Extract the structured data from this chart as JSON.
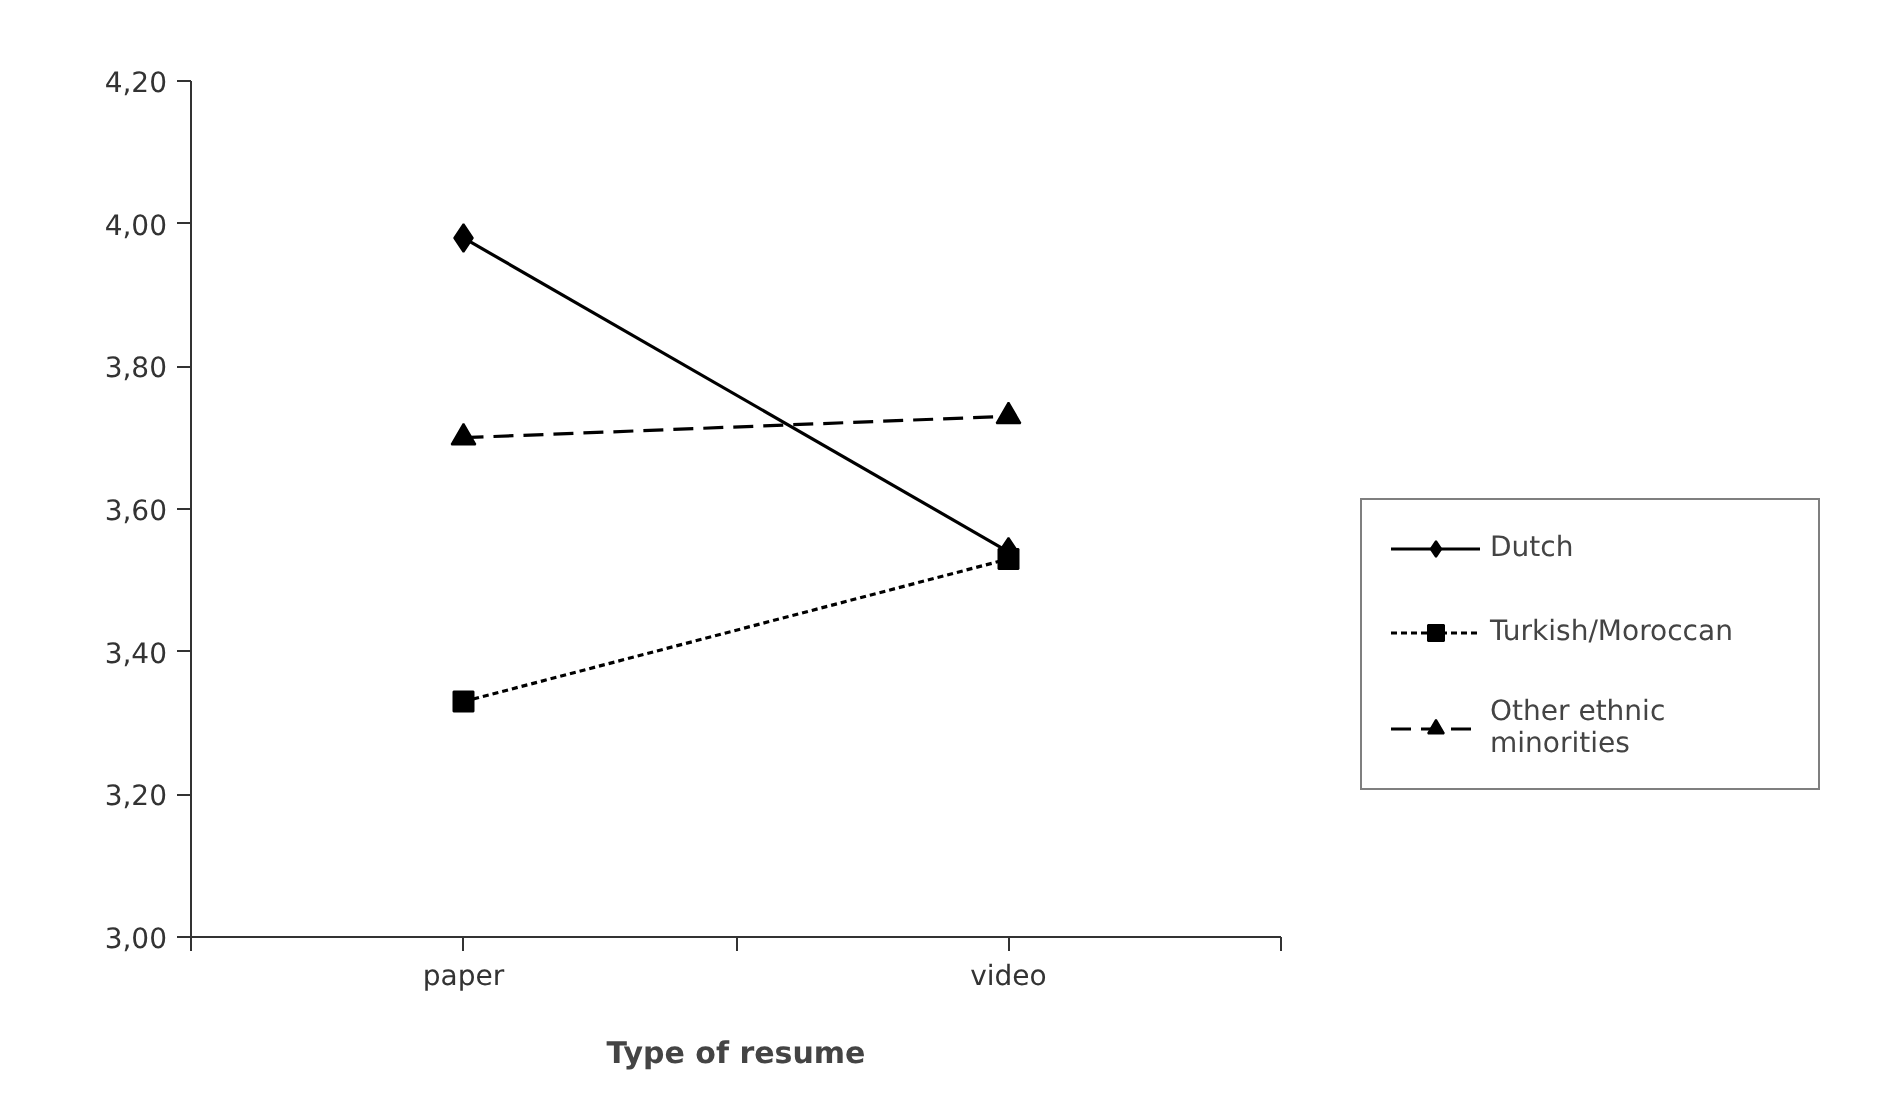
{
  "chart_data": {
    "type": "line",
    "xlabel": "Type of resume",
    "categories": [
      "paper",
      "video"
    ],
    "ylim": [
      3.0,
      4.2
    ],
    "yticks": [
      {
        "value": 3.0,
        "label": "3,00"
      },
      {
        "value": 3.2,
        "label": "3,20"
      },
      {
        "value": 3.4,
        "label": "3,40"
      },
      {
        "value": 3.6,
        "label": "3,60"
      },
      {
        "value": 3.8,
        "label": "3,80"
      },
      {
        "value": 4.0,
        "label": "4,00"
      },
      {
        "value": 4.2,
        "label": "4,20"
      }
    ],
    "grid": false,
    "legend": "right",
    "series": [
      {
        "name": "Dutch",
        "color": "#000000",
        "values": [
          3.98,
          3.54
        ],
        "marker": "diamond",
        "line_style": "solid"
      },
      {
        "name": "Turkish/Moroccan",
        "color": "#000000",
        "values": [
          3.33,
          3.53
        ],
        "marker": "square",
        "line_style": "dotted"
      },
      {
        "name": "Other ethnic\nminorities",
        "color": "#000000",
        "values": [
          3.7,
          3.73
        ],
        "marker": "triangle",
        "line_style": "dashed"
      }
    ]
  }
}
